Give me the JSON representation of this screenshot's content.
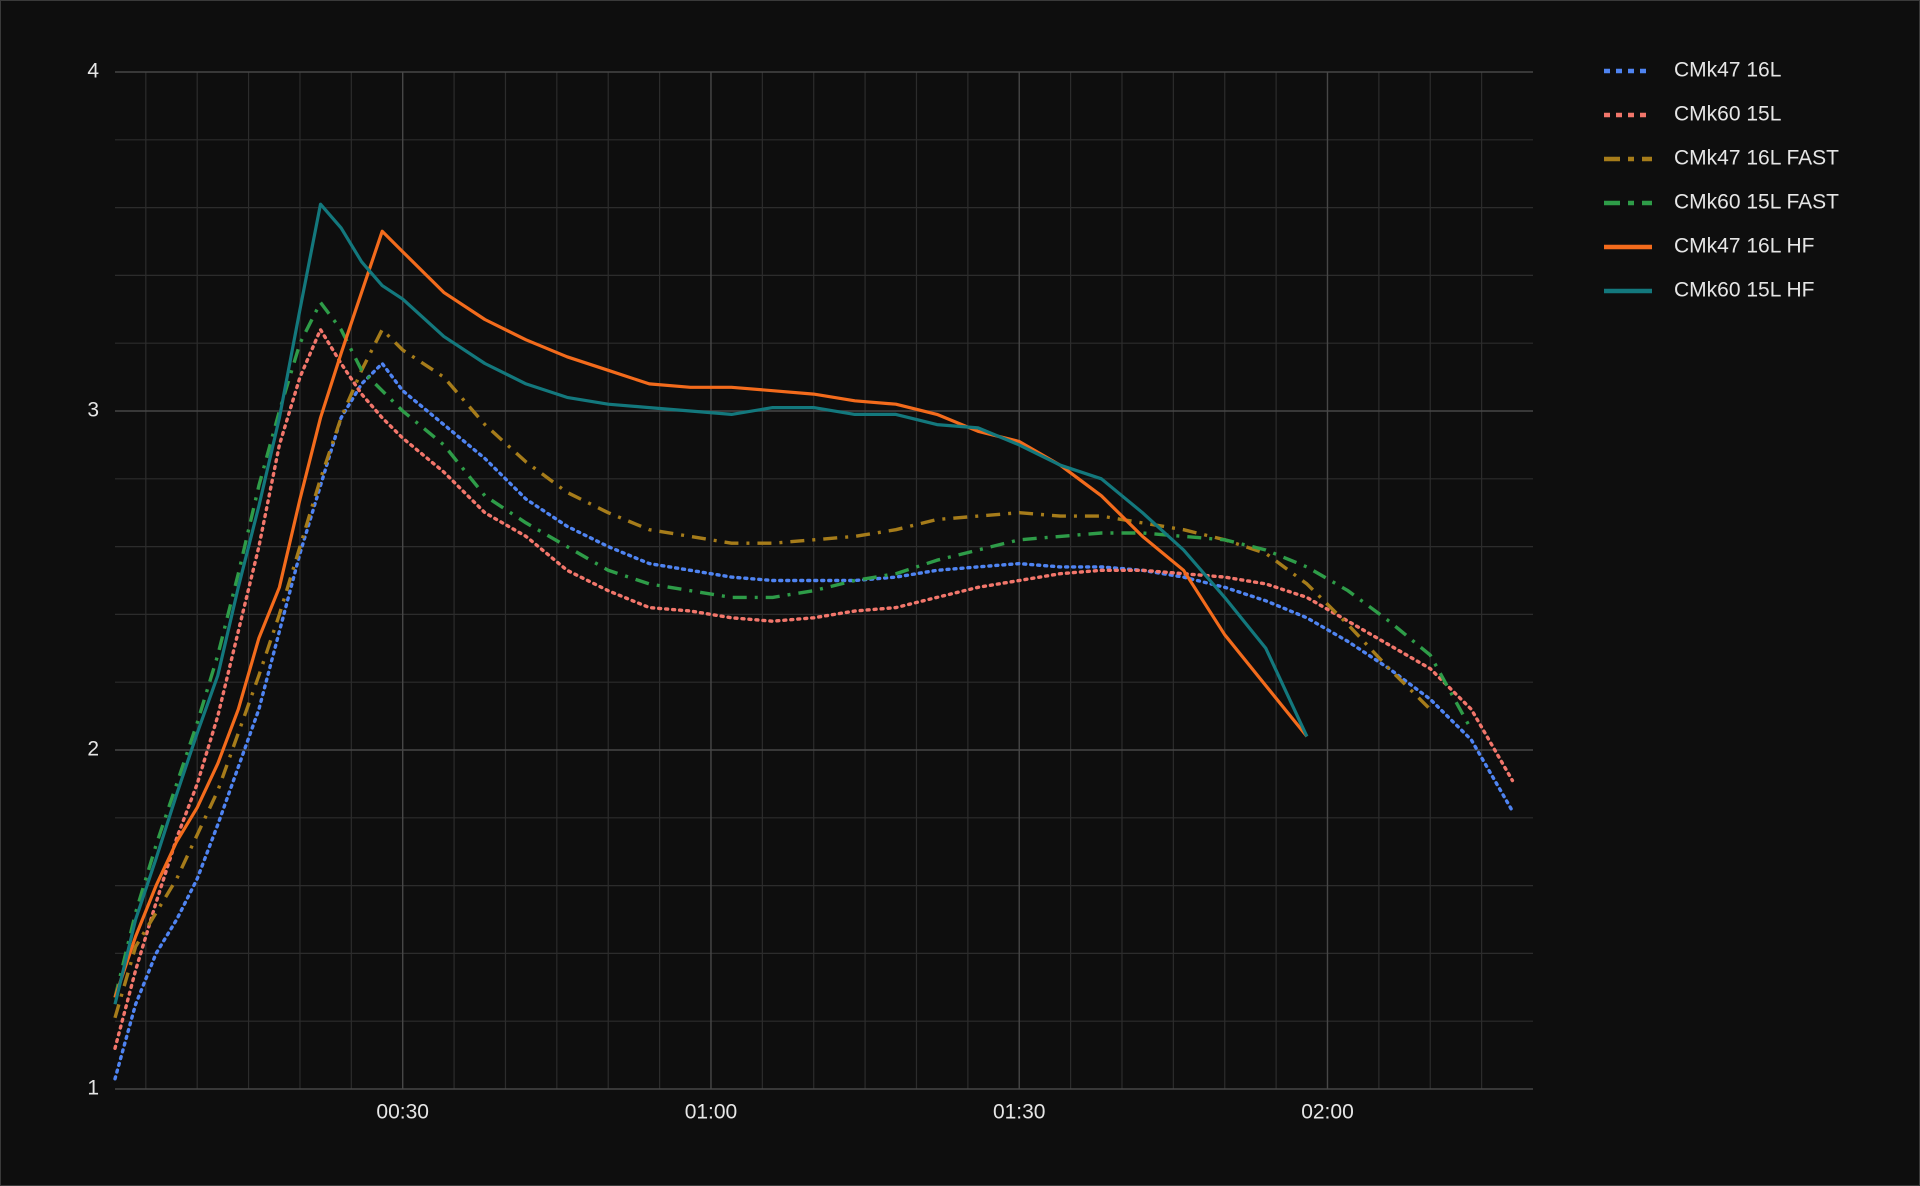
{
  "chart_data": {
    "type": "line",
    "x": [
      2,
      4,
      6,
      8,
      10,
      12,
      14,
      16,
      18,
      20,
      22,
      24,
      26,
      28,
      30,
      34,
      38,
      42,
      46,
      50,
      54,
      58,
      62,
      66,
      70,
      74,
      78,
      82,
      86,
      90,
      94,
      98,
      102,
      106,
      110,
      114,
      118,
      122,
      126,
      130,
      134,
      138
    ],
    "xlim": [
      2,
      140
    ],
    "xticks": [
      {
        "value": 30,
        "label": "00:30"
      },
      {
        "value": 60,
        "label": "01:00"
      },
      {
        "value": 90,
        "label": "01:30"
      },
      {
        "value": 120,
        "label": "02:00"
      }
    ],
    "xminorticks": [
      5,
      10,
      15,
      20,
      25,
      35,
      40,
      45,
      50,
      55,
      65,
      70,
      75,
      80,
      85,
      95,
      100,
      105,
      110,
      115,
      125,
      130,
      135
    ],
    "ylim": [
      1,
      4
    ],
    "yticks": [
      1,
      2,
      3,
      4
    ],
    "yminorticks": [
      1.2,
      1.4,
      1.6,
      1.8,
      2.2,
      2.4,
      2.6,
      2.8,
      3.2,
      3.4,
      3.6,
      3.8
    ],
    "grid": true,
    "legend": "right",
    "series": [
      {
        "name": "CMk47 16L",
        "color": "#4f84f2",
        "style": "dotted",
        "values": [
          1.03,
          1.25,
          1.4,
          1.5,
          1.62,
          1.78,
          1.95,
          2.12,
          2.35,
          2.58,
          2.78,
          2.98,
          3.08,
          3.14,
          3.06,
          2.96,
          2.86,
          2.74,
          2.66,
          2.6,
          2.55,
          2.53,
          2.51,
          2.5,
          2.5,
          2.5,
          2.51,
          2.53,
          2.54,
          2.55,
          2.54,
          2.54,
          2.53,
          2.51,
          2.48,
          2.44,
          2.39,
          2.32,
          2.24,
          2.15,
          2.03,
          1.82
        ]
      },
      {
        "name": "CMk60 15L",
        "color": "#f2766b",
        "style": "dotted",
        "values": [
          1.12,
          1.35,
          1.55,
          1.74,
          1.9,
          2.1,
          2.35,
          2.6,
          2.9,
          3.1,
          3.24,
          3.14,
          3.05,
          2.98,
          2.92,
          2.82,
          2.7,
          2.63,
          2.53,
          2.47,
          2.42,
          2.41,
          2.39,
          2.38,
          2.39,
          2.41,
          2.42,
          2.45,
          2.48,
          2.5,
          2.52,
          2.53,
          2.53,
          2.52,
          2.51,
          2.49,
          2.45,
          2.38,
          2.31,
          2.24,
          2.12,
          1.91
        ]
      },
      {
        "name": "CMk47 16L FAST",
        "color": "#a67c1a",
        "style": "dashdot",
        "values": [
          1.21,
          1.42,
          1.52,
          1.62,
          1.75,
          1.88,
          2.05,
          2.22,
          2.4,
          2.6,
          2.8,
          2.98,
          3.12,
          3.24,
          3.18,
          3.1,
          2.96,
          2.85,
          2.76,
          2.7,
          2.65,
          2.63,
          2.61,
          2.61,
          2.62,
          2.63,
          2.65,
          2.68,
          2.69,
          2.7,
          2.69,
          2.69,
          2.67,
          2.65,
          2.62,
          2.58,
          2.49,
          2.37,
          2.24,
          2.12,
          null,
          null
        ]
      },
      {
        "name": "CMk60 15L FAST",
        "color": "#2e9c48",
        "style": "dashdot",
        "values": [
          1.27,
          1.52,
          1.72,
          1.9,
          2.08,
          2.28,
          2.52,
          2.78,
          3.0,
          3.2,
          3.32,
          3.24,
          3.12,
          3.06,
          3.0,
          2.9,
          2.75,
          2.67,
          2.6,
          2.53,
          2.49,
          2.47,
          2.45,
          2.45,
          2.47,
          2.5,
          2.52,
          2.56,
          2.59,
          2.62,
          2.63,
          2.64,
          2.64,
          2.63,
          2.62,
          2.59,
          2.54,
          2.47,
          2.38,
          2.28,
          2.06,
          null
        ]
      },
      {
        "name": "CMk47 16L HF",
        "color": "#f36b1c",
        "style": "solid",
        "values": [
          1.27,
          1.45,
          1.6,
          1.73,
          1.83,
          1.96,
          2.12,
          2.33,
          2.48,
          2.74,
          2.98,
          3.17,
          3.35,
          3.53,
          3.47,
          3.35,
          3.27,
          3.21,
          3.16,
          3.12,
          3.08,
          3.07,
          3.07,
          3.06,
          3.05,
          3.03,
          3.02,
          2.99,
          2.94,
          2.91,
          2.84,
          2.75,
          2.63,
          2.53,
          2.34,
          2.19,
          2.04,
          null,
          null,
          null,
          null,
          null
        ]
      },
      {
        "name": "CMk60 15L HF",
        "color": "#13787d",
        "style": "solid",
        "values": [
          1.25,
          1.5,
          1.68,
          1.87,
          2.05,
          2.22,
          2.48,
          2.72,
          2.98,
          3.3,
          3.61,
          3.54,
          3.44,
          3.37,
          3.33,
          3.22,
          3.14,
          3.08,
          3.04,
          3.02,
          3.01,
          3.0,
          2.99,
          3.01,
          3.01,
          2.99,
          2.99,
          2.96,
          2.95,
          2.9,
          2.84,
          2.8,
          2.7,
          2.59,
          2.45,
          2.3,
          2.04,
          null,
          null,
          null,
          null,
          null
        ]
      }
    ]
  }
}
